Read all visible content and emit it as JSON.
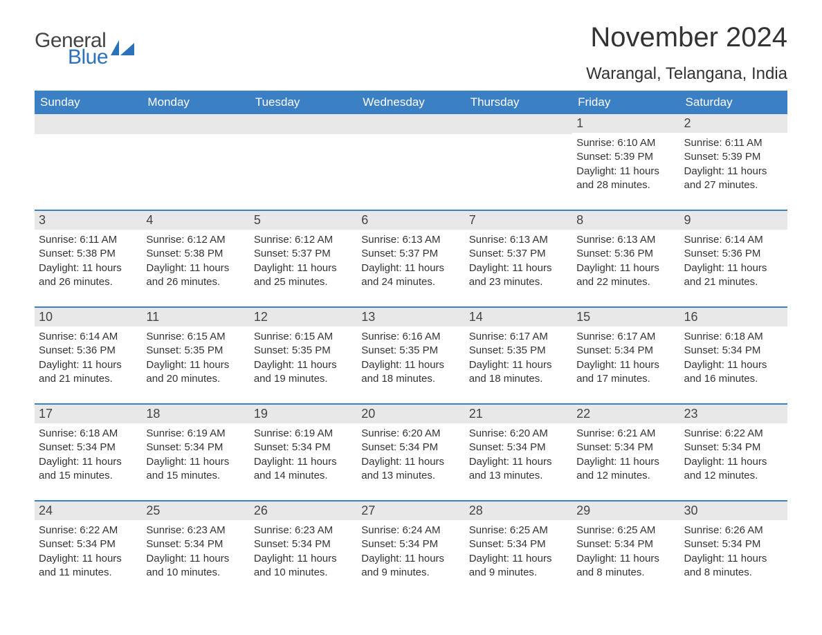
{
  "brand": {
    "part1": "General",
    "part2": "Blue",
    "flag_color": "#2b72b9"
  },
  "title": "November 2024",
  "location": "Warangal, Telangana, India",
  "colors": {
    "header_bg": "#3b7fc4",
    "header_text": "#ffffff",
    "daynum_bg": "#e8e8e8",
    "text": "#333333",
    "border": "#3b7fc4"
  },
  "day_names": [
    "Sunday",
    "Monday",
    "Tuesday",
    "Wednesday",
    "Thursday",
    "Friday",
    "Saturday"
  ],
  "weeks": [
    [
      null,
      null,
      null,
      null,
      null,
      {
        "n": "1",
        "sunrise": "Sunrise: 6:10 AM",
        "sunset": "Sunset: 5:39 PM",
        "daylight": "Daylight: 11 hours and 28 minutes."
      },
      {
        "n": "2",
        "sunrise": "Sunrise: 6:11 AM",
        "sunset": "Sunset: 5:39 PM",
        "daylight": "Daylight: 11 hours and 27 minutes."
      }
    ],
    [
      {
        "n": "3",
        "sunrise": "Sunrise: 6:11 AM",
        "sunset": "Sunset: 5:38 PM",
        "daylight": "Daylight: 11 hours and 26 minutes."
      },
      {
        "n": "4",
        "sunrise": "Sunrise: 6:12 AM",
        "sunset": "Sunset: 5:38 PM",
        "daylight": "Daylight: 11 hours and 26 minutes."
      },
      {
        "n": "5",
        "sunrise": "Sunrise: 6:12 AM",
        "sunset": "Sunset: 5:37 PM",
        "daylight": "Daylight: 11 hours and 25 minutes."
      },
      {
        "n": "6",
        "sunrise": "Sunrise: 6:13 AM",
        "sunset": "Sunset: 5:37 PM",
        "daylight": "Daylight: 11 hours and 24 minutes."
      },
      {
        "n": "7",
        "sunrise": "Sunrise: 6:13 AM",
        "sunset": "Sunset: 5:37 PM",
        "daylight": "Daylight: 11 hours and 23 minutes."
      },
      {
        "n": "8",
        "sunrise": "Sunrise: 6:13 AM",
        "sunset": "Sunset: 5:36 PM",
        "daylight": "Daylight: 11 hours and 22 minutes."
      },
      {
        "n": "9",
        "sunrise": "Sunrise: 6:14 AM",
        "sunset": "Sunset: 5:36 PM",
        "daylight": "Daylight: 11 hours and 21 minutes."
      }
    ],
    [
      {
        "n": "10",
        "sunrise": "Sunrise: 6:14 AM",
        "sunset": "Sunset: 5:36 PM",
        "daylight": "Daylight: 11 hours and 21 minutes."
      },
      {
        "n": "11",
        "sunrise": "Sunrise: 6:15 AM",
        "sunset": "Sunset: 5:35 PM",
        "daylight": "Daylight: 11 hours and 20 minutes."
      },
      {
        "n": "12",
        "sunrise": "Sunrise: 6:15 AM",
        "sunset": "Sunset: 5:35 PM",
        "daylight": "Daylight: 11 hours and 19 minutes."
      },
      {
        "n": "13",
        "sunrise": "Sunrise: 6:16 AM",
        "sunset": "Sunset: 5:35 PM",
        "daylight": "Daylight: 11 hours and 18 minutes."
      },
      {
        "n": "14",
        "sunrise": "Sunrise: 6:17 AM",
        "sunset": "Sunset: 5:35 PM",
        "daylight": "Daylight: 11 hours and 18 minutes."
      },
      {
        "n": "15",
        "sunrise": "Sunrise: 6:17 AM",
        "sunset": "Sunset: 5:34 PM",
        "daylight": "Daylight: 11 hours and 17 minutes."
      },
      {
        "n": "16",
        "sunrise": "Sunrise: 6:18 AM",
        "sunset": "Sunset: 5:34 PM",
        "daylight": "Daylight: 11 hours and 16 minutes."
      }
    ],
    [
      {
        "n": "17",
        "sunrise": "Sunrise: 6:18 AM",
        "sunset": "Sunset: 5:34 PM",
        "daylight": "Daylight: 11 hours and 15 minutes."
      },
      {
        "n": "18",
        "sunrise": "Sunrise: 6:19 AM",
        "sunset": "Sunset: 5:34 PM",
        "daylight": "Daylight: 11 hours and 15 minutes."
      },
      {
        "n": "19",
        "sunrise": "Sunrise: 6:19 AM",
        "sunset": "Sunset: 5:34 PM",
        "daylight": "Daylight: 11 hours and 14 minutes."
      },
      {
        "n": "20",
        "sunrise": "Sunrise: 6:20 AM",
        "sunset": "Sunset: 5:34 PM",
        "daylight": "Daylight: 11 hours and 13 minutes."
      },
      {
        "n": "21",
        "sunrise": "Sunrise: 6:20 AM",
        "sunset": "Sunset: 5:34 PM",
        "daylight": "Daylight: 11 hours and 13 minutes."
      },
      {
        "n": "22",
        "sunrise": "Sunrise: 6:21 AM",
        "sunset": "Sunset: 5:34 PM",
        "daylight": "Daylight: 11 hours and 12 minutes."
      },
      {
        "n": "23",
        "sunrise": "Sunrise: 6:22 AM",
        "sunset": "Sunset: 5:34 PM",
        "daylight": "Daylight: 11 hours and 12 minutes."
      }
    ],
    [
      {
        "n": "24",
        "sunrise": "Sunrise: 6:22 AM",
        "sunset": "Sunset: 5:34 PM",
        "daylight": "Daylight: 11 hours and 11 minutes."
      },
      {
        "n": "25",
        "sunrise": "Sunrise: 6:23 AM",
        "sunset": "Sunset: 5:34 PM",
        "daylight": "Daylight: 11 hours and 10 minutes."
      },
      {
        "n": "26",
        "sunrise": "Sunrise: 6:23 AM",
        "sunset": "Sunset: 5:34 PM",
        "daylight": "Daylight: 11 hours and 10 minutes."
      },
      {
        "n": "27",
        "sunrise": "Sunrise: 6:24 AM",
        "sunset": "Sunset: 5:34 PM",
        "daylight": "Daylight: 11 hours and 9 minutes."
      },
      {
        "n": "28",
        "sunrise": "Sunrise: 6:25 AM",
        "sunset": "Sunset: 5:34 PM",
        "daylight": "Daylight: 11 hours and 9 minutes."
      },
      {
        "n": "29",
        "sunrise": "Sunrise: 6:25 AM",
        "sunset": "Sunset: 5:34 PM",
        "daylight": "Daylight: 11 hours and 8 minutes."
      },
      {
        "n": "30",
        "sunrise": "Sunrise: 6:26 AM",
        "sunset": "Sunset: 5:34 PM",
        "daylight": "Daylight: 11 hours and 8 minutes."
      }
    ]
  ]
}
